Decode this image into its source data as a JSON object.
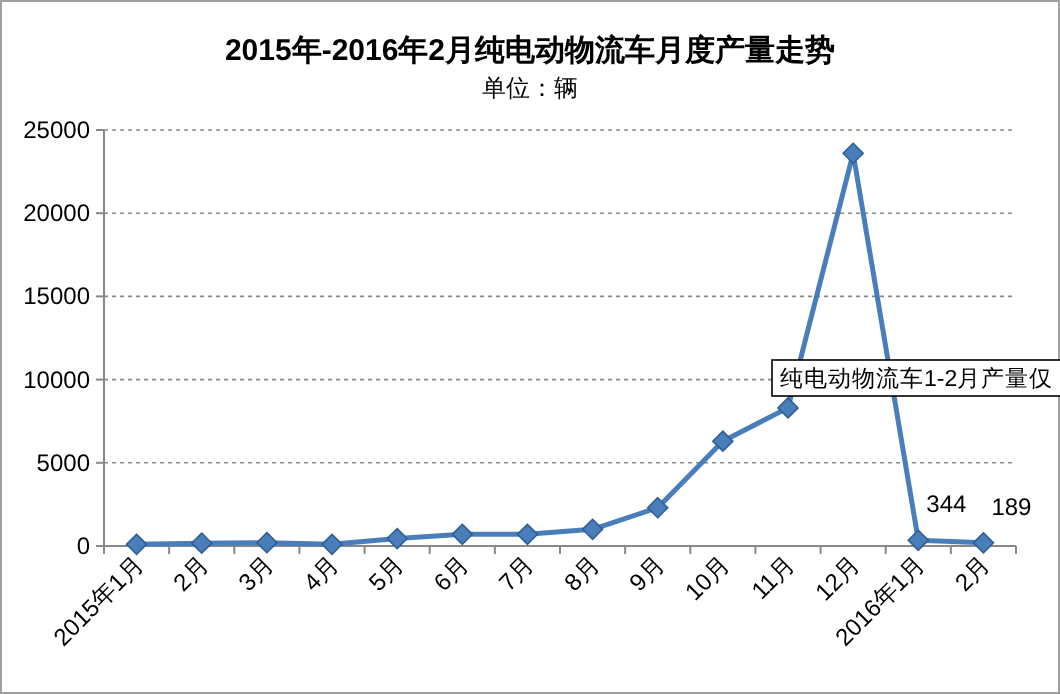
{
  "chart_data": {
    "type": "line",
    "title": "2015年-2016年2月纯电动物流车月度产量走势",
    "subtitle": "单位：辆",
    "categories": [
      "2015年1月",
      "2月",
      "3月",
      "4月",
      "5月",
      "6月",
      "7月",
      "8月",
      "9月",
      "10月",
      "11月",
      "12月",
      "2016年1月",
      "2月"
    ],
    "series": [
      {
        "color": "#4a7ebb",
        "values": [
          100,
          170,
          200,
          100,
          450,
          700,
          700,
          1000,
          2300,
          6300,
          8300,
          23600,
          344,
          189
        ],
        "value_labels": [
          null,
          null,
          null,
          null,
          null,
          null,
          null,
          null,
          null,
          null,
          null,
          null,
          "344",
          "189"
        ]
      }
    ],
    "ylim": [
      0,
      25000
    ],
    "yticks": [
      0,
      5000,
      10000,
      15000,
      20000,
      25000
    ],
    "grid": "y",
    "marker": "diamond",
    "line_style": "solid",
    "annotations": [
      "纯电动物流车1-2月产量仅"
    ]
  }
}
